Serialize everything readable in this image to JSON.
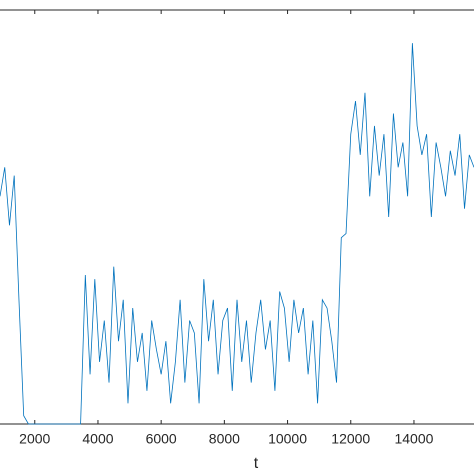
{
  "chart_data": {
    "type": "line",
    "x_label": "t",
    "x": [
      900,
      1050,
      1200,
      1350,
      1500,
      1650,
      1800,
      1950,
      2100,
      2250,
      2400,
      2550,
      2700,
      2850,
      3000,
      3150,
      3300,
      3450,
      3600,
      3750,
      3900,
      4050,
      4200,
      4350,
      4500,
      4650,
      4800,
      4950,
      5100,
      5250,
      5400,
      5550,
      5700,
      5850,
      6000,
      6150,
      6300,
      6450,
      6600,
      6750,
      6900,
      7050,
      7200,
      7350,
      7500,
      7650,
      7800,
      7950,
      8100,
      8250,
      8400,
      8550,
      8700,
      8850,
      9000,
      9150,
      9300,
      9450,
      9600,
      9750,
      9900,
      10050,
      10200,
      10350,
      10500,
      10650,
      10800,
      10950,
      11100,
      11250,
      11400,
      11550,
      11700,
      11850,
      12000,
      12150,
      12300,
      12450,
      12600,
      12750,
      12900,
      13050,
      13200,
      13350,
      13500,
      13650,
      13800,
      13950,
      14100,
      14250,
      14400,
      14550,
      14700,
      14850,
      15000,
      15150,
      15300,
      15450,
      15600,
      15750,
      15900
    ],
    "values": [
      0.55,
      0.62,
      0.48,
      0.6,
      0.3,
      0.02,
      0,
      0,
      0,
      0,
      0,
      0,
      0,
      0,
      0,
      0,
      0,
      0,
      0.36,
      0.12,
      0.35,
      0.15,
      0.25,
      0.1,
      0.38,
      0.2,
      0.3,
      0.05,
      0.28,
      0.15,
      0.22,
      0.08,
      0.25,
      0.18,
      0.12,
      0.2,
      0.05,
      0.15,
      0.3,
      0.1,
      0.25,
      0.22,
      0.05,
      0.35,
      0.2,
      0.3,
      0.12,
      0.25,
      0.28,
      0.08,
      0.3,
      0.15,
      0.25,
      0.1,
      0.22,
      0.3,
      0.18,
      0.25,
      0.08,
      0.32,
      0.28,
      0.15,
      0.3,
      0.22,
      0.28,
      0.12,
      0.25,
      0.05,
      0.3,
      0.28,
      0.2,
      0.1,
      0.45,
      0.46,
      0.7,
      0.78,
      0.65,
      0.8,
      0.55,
      0.72,
      0.6,
      0.7,
      0.5,
      0.75,
      0.62,
      0.68,
      0.55,
      0.92,
      0.72,
      0.65,
      0.7,
      0.5,
      0.68,
      0.62,
      0.55,
      0.66,
      0.6,
      0.7,
      0.52,
      0.65,
      0.62
    ],
    "color": "#0072bd",
    "xlim": [
      900,
      15900
    ],
    "ylim": [
      0,
      1
    ],
    "xticks": [
      2000,
      4000,
      6000,
      8000,
      10000,
      12000,
      14000
    ]
  }
}
